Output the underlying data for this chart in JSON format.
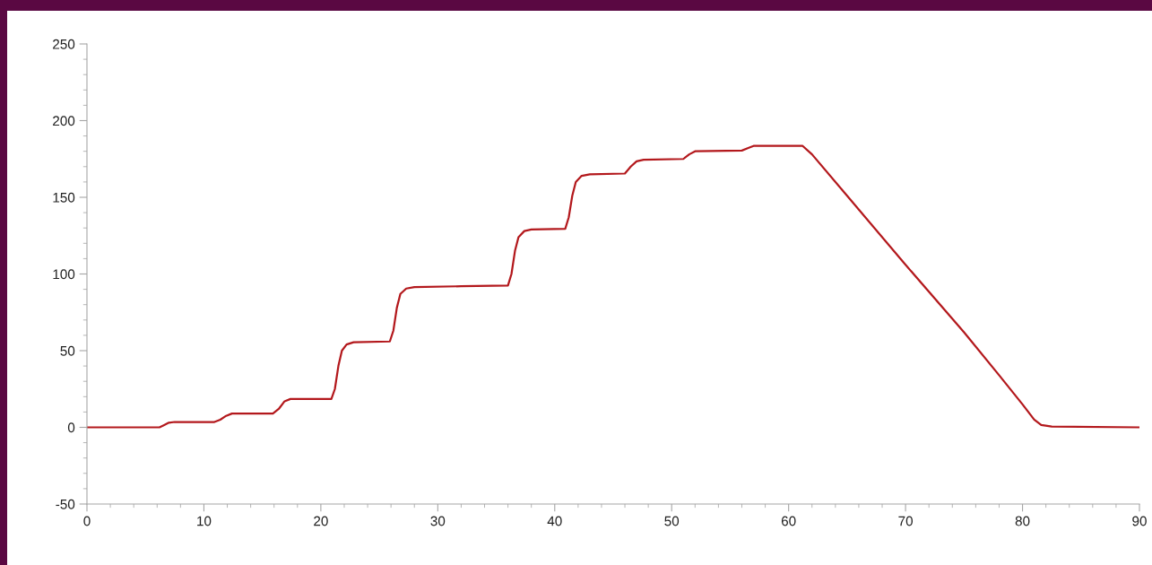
{
  "chart_data": {
    "type": "line",
    "x": [
      0,
      6.2,
      6.6,
      7.0,
      7.5,
      10.9,
      11.4,
      11.9,
      12.4,
      15.9,
      16.4,
      16.9,
      17.4,
      20.9,
      21.2,
      21.5,
      21.8,
      22.2,
      22.8,
      25.9,
      26.2,
      26.5,
      26.8,
      27.3,
      28,
      32,
      36,
      36.3,
      36.6,
      36.9,
      37.4,
      38,
      40.9,
      41.2,
      41.5,
      41.8,
      42.3,
      43,
      46,
      46.5,
      47,
      47.6,
      51,
      51.5,
      52,
      56,
      56.5,
      57,
      61.2,
      62,
      65,
      70,
      75,
      78,
      80,
      81,
      81.6,
      82.5,
      90
    ],
    "series": [
      {
        "color": "#b3181c",
        "values": [
          0,
          0,
          1.5,
          3,
          3.5,
          3.5,
          5,
          7.5,
          9,
          9,
          12,
          17,
          18.5,
          18.5,
          25,
          40,
          50,
          54,
          55.5,
          56,
          63,
          78,
          87,
          90.5,
          91.5,
          92,
          92.5,
          100,
          115,
          124,
          128,
          129,
          129.5,
          137,
          151,
          160,
          164,
          165,
          165.5,
          170,
          173.5,
          174.5,
          175,
          178,
          180,
          180.5,
          182,
          183.5,
          183.5,
          178,
          151,
          106,
          62,
          34,
          15,
          5,
          1.5,
          0.5,
          0
        ]
      }
    ],
    "xlim": [
      0,
      90
    ],
    "xticks": [
      0,
      10,
      20,
      30,
      40,
      50,
      60,
      70,
      80,
      90
    ],
    "ylim": [
      -50,
      250
    ],
    "yticks": [
      -50,
      0,
      50,
      100,
      150,
      200,
      250
    ]
  }
}
